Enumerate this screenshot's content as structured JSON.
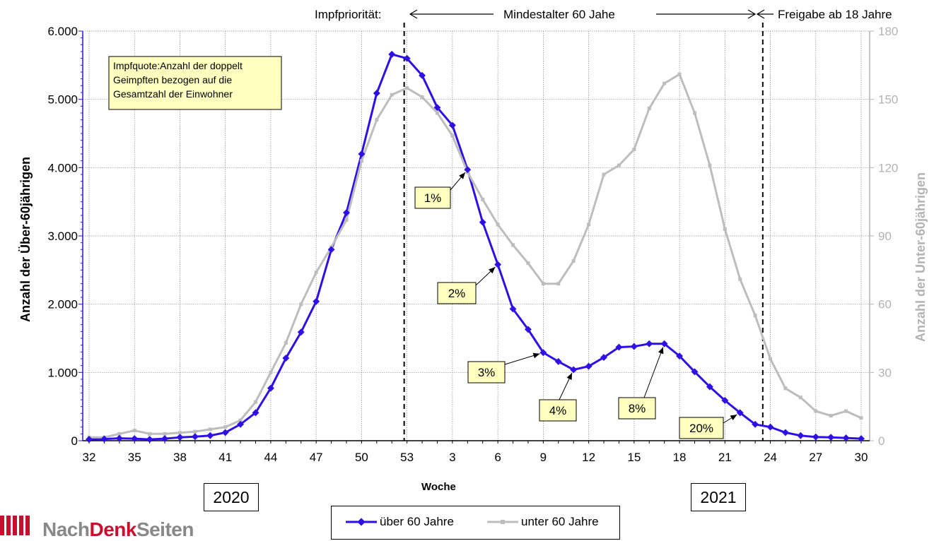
{
  "chart_data": {
    "type": "line",
    "xlabel": "Woche",
    "ylabel_left": "Anzahl der Über-60jährigen",
    "ylabel_right": "Anzahl der Unter-60jährigen",
    "ylim_left": [
      0,
      6000
    ],
    "ylim_right": [
      0,
      180
    ],
    "yticks_left": [
      "0",
      "1.000",
      "2.000",
      "3.000",
      "4.000",
      "5.000",
      "6.000"
    ],
    "yticks_right": [
      "0",
      "30",
      "60",
      "90",
      "120",
      "150",
      "180"
    ],
    "x_categories": [
      "32",
      "33",
      "34",
      "35",
      "36",
      "37",
      "38",
      "39",
      "40",
      "41",
      "42",
      "43",
      "44",
      "45",
      "46",
      "47",
      "48",
      "49",
      "50",
      "51",
      "52",
      "53",
      "1",
      "2",
      "3",
      "4",
      "5",
      "6",
      "7",
      "8",
      "9",
      "10",
      "11",
      "12",
      "13",
      "14",
      "15",
      "16",
      "17",
      "18",
      "19",
      "20",
      "21",
      "22",
      "23",
      "24",
      "25",
      "26",
      "27",
      "28",
      "29",
      "30"
    ],
    "x_tick_labels": [
      "32",
      "35",
      "38",
      "41",
      "44",
      "47",
      "50",
      "53",
      "3",
      "6",
      "9",
      "12",
      "15",
      "18",
      "21",
      "24",
      "27",
      "30"
    ],
    "grid": true,
    "series": [
      {
        "name": "über 60 Jahre",
        "axis": "left",
        "color": "#2e10e6",
        "values": [
          20,
          25,
          35,
          30,
          20,
          30,
          50,
          60,
          75,
          120,
          240,
          410,
          770,
          1210,
          1590,
          2040,
          2800,
          3340,
          4200,
          5090,
          5660,
          5600,
          5350,
          4880,
          4620,
          3970,
          3200,
          2580,
          1930,
          1630,
          1290,
          1160,
          1040,
          1090,
          1220,
          1370,
          1380,
          1420,
          1420,
          1240,
          1010,
          790,
          590,
          410,
          240,
          200,
          120,
          75,
          55,
          50,
          40,
          30
        ]
      },
      {
        "name": "unter 60 Jahre",
        "axis": "right",
        "color": "#bdbdbd",
        "values": [
          1.5,
          1.5,
          3,
          4.5,
          3,
          3,
          3.5,
          4,
          5,
          6,
          9,
          17,
          30,
          43,
          60,
          74,
          85,
          97,
          123,
          141,
          152,
          155,
          151,
          144,
          134,
          118,
          106,
          95,
          86,
          78,
          69,
          69,
          79,
          95,
          117,
          121,
          128,
          146,
          157,
          161,
          144,
          121,
          93,
          71,
          55,
          36,
          23,
          19,
          13,
          11,
          13,
          10
        ]
      }
    ],
    "header": {
      "prio_label": "Impfpriorität:",
      "mid_label": "Mindestalter 60 Jahe",
      "right_label": "Freigabe ab 18 Jahre"
    },
    "note": "Impfquote:Anzahl der doppelt Geimpften bezogen auf die Gesamtzahl der Einwohner",
    "annotations": [
      {
        "label": "1%",
        "x": "4",
        "y": 3970
      },
      {
        "label": "2%",
        "x": "6",
        "y": 2580
      },
      {
        "label": "3%",
        "x": "9",
        "y": 1290
      },
      {
        "label": "4%",
        "x": "11",
        "y": 1040
      },
      {
        "label": "8%",
        "x": "17",
        "y": 1420
      },
      {
        "label": "20%",
        "x": "22",
        "y": 410
      }
    ],
    "years": [
      "2020",
      "2021"
    ]
  },
  "logo": {
    "part1": "Nach",
    "part2": "Denk",
    "part3": "Seiten"
  },
  "colors": {
    "accent": "#2e10e6",
    "secondary": "#bdbdbd",
    "note_bg": "#ffffc0"
  }
}
